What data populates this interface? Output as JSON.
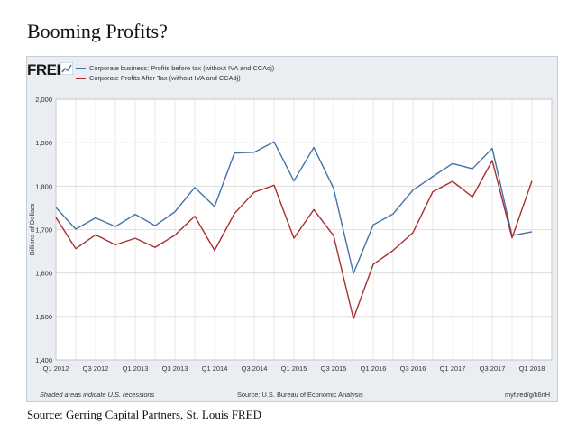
{
  "page_title": "Booming Profits?",
  "source": "Source: Gerring Capital Partners, St. Louis FRED",
  "fred": {
    "logo": "FRED",
    "footer_left": "Shaded areas indicate U.S. recessions",
    "footer_source": "Source: U.S. Bureau of Economic Analysis",
    "footer_url": "myf.red/g/k6nH"
  },
  "colors": {
    "before_tax": "#4572a7",
    "after_tax": "#aa2e2e",
    "frame": "#eaeef3",
    "plot_bg": "#ffffff",
    "grid": "#d9d9d9"
  },
  "chart_data": {
    "type": "line",
    "ylabel": "Billions of Dollars",
    "ylim": [
      1400,
      2000
    ],
    "yticks": [
      1400,
      1500,
      1600,
      1700,
      1800,
      1900,
      2000
    ],
    "ytick_labels": [
      "1,400",
      "1,500",
      "1,600",
      "1,700",
      "1,800",
      "1,900",
      "2,000"
    ],
    "xlim": [
      0,
      25
    ],
    "xticks": [
      {
        "x": 0,
        "label": "Q1 2012"
      },
      {
        "x": 2,
        "label": "Q3 2012"
      },
      {
        "x": 4,
        "label": "Q1 2013"
      },
      {
        "x": 6,
        "label": "Q3 2013"
      },
      {
        "x": 8,
        "label": "Q1 2014"
      },
      {
        "x": 10,
        "label": "Q3 2014"
      },
      {
        "x": 12,
        "label": "Q1 2015"
      },
      {
        "x": 14,
        "label": "Q3 2015"
      },
      {
        "x": 16,
        "label": "Q1 2016"
      },
      {
        "x": 18,
        "label": "Q3 2016"
      },
      {
        "x": 20,
        "label": "Q1 2017"
      },
      {
        "x": 22,
        "label": "Q3 2017"
      },
      {
        "x": 24,
        "label": "Q1 2018"
      }
    ],
    "series": [
      {
        "name": "Corporate business: Profits before tax (without IVA and CCAdj)",
        "color": "#4572a7",
        "values": [
          1751,
          1701,
          1727,
          1707,
          1735,
          1709,
          1741,
          1797,
          1753,
          1876,
          1878,
          1902,
          1812,
          1889,
          1795,
          1599,
          1711,
          1736,
          1791,
          1822,
          1852,
          1840,
          1887,
          1686,
          1695
        ]
      },
      {
        "name": "Corporate Profits After Tax (without IVA and CCAdj)",
        "color": "#aa2e2e",
        "values": [
          1728,
          1656,
          1688,
          1665,
          1680,
          1659,
          1687,
          1731,
          1652,
          1737,
          1786,
          1802,
          1680,
          1746,
          1686,
          1495,
          1620,
          1652,
          1693,
          1787,
          1811,
          1775,
          1859,
          1681,
          1812
        ]
      }
    ]
  }
}
